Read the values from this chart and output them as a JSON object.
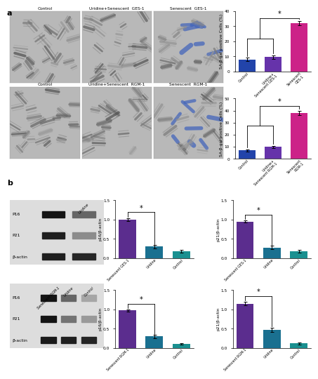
{
  "bar_chart_a1": {
    "tick_labels": [
      "Control",
      "Uridine+\nSenescent GES-1",
      "Senescent\nGES-1"
    ],
    "values": [
      8,
      9.5,
      32
    ],
    "errors": [
      1.0,
      1.2,
      1.5
    ],
    "colors": [
      "#2244aa",
      "#6633aa",
      "#cc2288"
    ],
    "ylabel": "SA-β-gal positive Cells (%)",
    "ylim": [
      0,
      40
    ],
    "yticks": [
      0,
      10,
      20,
      30,
      40
    ]
  },
  "bar_chart_a2": {
    "tick_labels": [
      "Control",
      "Uridine+\nSenescent RGM-1",
      "Senescent\nRGM-1"
    ],
    "values": [
      7,
      10,
      38
    ],
    "errors": [
      0.8,
      1.0,
      1.8
    ],
    "colors": [
      "#2244aa",
      "#6633aa",
      "#cc2288"
    ],
    "ylabel": "SA-β-gal positive Cells (%)",
    "ylim": [
      0,
      50
    ],
    "yticks": [
      0,
      10,
      20,
      30,
      40,
      50
    ]
  },
  "bar_chart_b1": {
    "tick_labels": [
      "Senescent GES-1",
      "Uridine",
      "Control"
    ],
    "values": [
      1.0,
      0.3,
      0.18
    ],
    "errors": [
      0.04,
      0.04,
      0.03
    ],
    "colors": [
      "#5b2d8e",
      "#1a7090",
      "#1a9090"
    ],
    "ylabel": "p16/β-actin",
    "ylim": [
      0,
      1.5
    ],
    "yticks": [
      0.0,
      0.5,
      1.0,
      1.5
    ]
  },
  "bar_chart_b2": {
    "tick_labels": [
      "Senescent GES-1",
      "Uridine",
      "Control"
    ],
    "values": [
      0.95,
      0.28,
      0.18
    ],
    "errors": [
      0.03,
      0.04,
      0.03
    ],
    "colors": [
      "#5b2d8e",
      "#1a7090",
      "#1a9090"
    ],
    "ylabel": "p21/β-actin",
    "ylim": [
      0,
      1.5
    ],
    "yticks": [
      0.0,
      0.5,
      1.0,
      1.5
    ]
  },
  "bar_chart_b3": {
    "tick_labels": [
      "Senescent RGM-1",
      "Uridine",
      "Control"
    ],
    "values": [
      0.97,
      0.3,
      0.1
    ],
    "errors": [
      0.03,
      0.04,
      0.02
    ],
    "colors": [
      "#5b2d8e",
      "#1a7090",
      "#1a9090"
    ],
    "ylabel": "p16/β-actin",
    "ylim": [
      0,
      1.5
    ],
    "yticks": [
      0.0,
      0.5,
      1.0,
      1.5
    ]
  },
  "bar_chart_b4": {
    "tick_labels": [
      "Senescent RGM-1",
      "Uridine",
      "Control"
    ],
    "values": [
      1.15,
      0.47,
      0.12
    ],
    "errors": [
      0.05,
      0.06,
      0.03
    ],
    "colors": [
      "#5b2d8e",
      "#1a7090",
      "#1a9090"
    ],
    "ylabel": "p21/β-actin",
    "ylim": [
      0,
      1.5
    ],
    "yticks": [
      0.0,
      0.5,
      1.0,
      1.5
    ]
  },
  "cell_titles_row1": [
    "Control",
    "Uridine+Senescent  GES-1",
    "Senescent  GES-1"
  ],
  "cell_titles_row2": [
    "Control",
    "Uridine+Senescent  RGM-1",
    "Senescent  RGM-1"
  ],
  "wb_labels_top": [
    "P16",
    "P21",
    "β-actin"
  ],
  "wb_labels_bottom": [
    "P16",
    "P21",
    "β-actin"
  ],
  "wb_top_col_header": "Uridine",
  "wb_bottom_col_headers": [
    "Senescent\nRGM-1",
    "Uridine",
    "Control"
  ],
  "bg_color": "#ffffff",
  "panel_label_fontsize": 8
}
